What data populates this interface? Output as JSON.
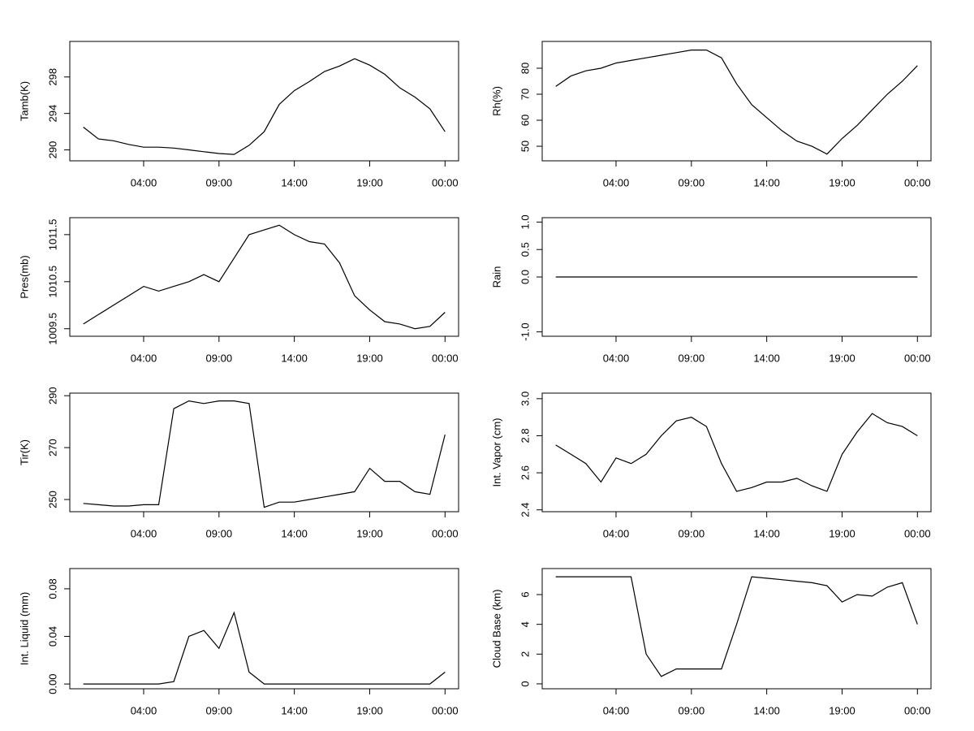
{
  "chart_data": [
    {
      "type": "line",
      "y_label": "Tamb(K)",
      "color": "#000000",
      "x": [
        0,
        1,
        2,
        3,
        4,
        5,
        6,
        7,
        8,
        9,
        10,
        11,
        12,
        13,
        14,
        15,
        16,
        17,
        18,
        19,
        20,
        21,
        22,
        23,
        24
      ],
      "values": [
        292.5,
        291.2,
        291,
        290.6,
        290.3,
        290.3,
        290.2,
        290,
        289.8,
        289.6,
        289.5,
        290.5,
        292,
        295,
        296.5,
        297.5,
        298.6,
        299.2,
        300,
        299.3,
        298.3,
        296.8,
        295.8,
        294.5,
        292
      ],
      "xlim": [
        -0.9,
        24.9
      ],
      "xticks": [
        {
          "value": 4,
          "label": "04:00"
        },
        {
          "value": 9,
          "label": "09:00"
        },
        {
          "value": 14,
          "label": "14:00"
        },
        {
          "value": 19,
          "label": "19:00"
        },
        {
          "value": 24,
          "label": "00:00"
        }
      ],
      "ylim": [
        288.8,
        301.9
      ],
      "yticks": [
        290,
        294,
        298
      ]
    },
    {
      "type": "line",
      "y_label": "Rh(%)",
      "color": "#000000",
      "x": [
        0,
        1,
        2,
        3,
        4,
        5,
        6,
        7,
        8,
        9,
        10,
        11,
        12,
        13,
        14,
        15,
        16,
        17,
        18,
        19,
        20,
        21,
        22,
        23,
        24
      ],
      "values": [
        73,
        77,
        79,
        80,
        82,
        83,
        84,
        85,
        86,
        87,
        87,
        84,
        74,
        66,
        61,
        56,
        52,
        50,
        47,
        53,
        58,
        64,
        70,
        75,
        81
      ],
      "xlim": [
        -0.9,
        24.9
      ],
      "xticks": [
        {
          "value": 4,
          "label": "04:00"
        },
        {
          "value": 9,
          "label": "09:00"
        },
        {
          "value": 14,
          "label": "14:00"
        },
        {
          "value": 19,
          "label": "19:00"
        },
        {
          "value": 24,
          "label": "00:00"
        }
      ],
      "ylim": [
        44.4,
        90.3
      ],
      "yticks": [
        50,
        60,
        70,
        80
      ]
    },
    {
      "type": "line",
      "y_label": "Pres(mb)",
      "color": "#000000",
      "x": [
        0,
        1,
        2,
        3,
        4,
        5,
        6,
        7,
        8,
        9,
        10,
        11,
        12,
        13,
        14,
        15,
        16,
        17,
        18,
        19,
        20,
        21,
        22,
        23,
        24
      ],
      "values": [
        1009.6,
        1009.8,
        1010.0,
        1010.2,
        1010.4,
        1010.3,
        1010.4,
        1010.5,
        1010.65,
        1010.5,
        1011.0,
        1011.5,
        1011.6,
        1011.7,
        1011.5,
        1011.35,
        1011.3,
        1010.9,
        1010.2,
        1009.9,
        1009.65,
        1009.6,
        1009.5,
        1009.55,
        1009.85
      ],
      "xlim": [
        -0.9,
        24.9
      ],
      "xticks": [
        {
          "value": 4,
          "label": "04:00"
        },
        {
          "value": 9,
          "label": "09:00"
        },
        {
          "value": 14,
          "label": "14:00"
        },
        {
          "value": 19,
          "label": "19:00"
        },
        {
          "value": 24,
          "label": "00:00"
        }
      ],
      "ylim": [
        1009.34,
        1011.86
      ],
      "yticks": [
        1009.5,
        1010.5,
        1011.5
      ]
    },
    {
      "type": "line",
      "y_label": "Rain",
      "color": "#000000",
      "x": [
        0,
        1,
        2,
        3,
        4,
        5,
        6,
        7,
        8,
        9,
        10,
        11,
        12,
        13,
        14,
        15,
        16,
        17,
        18,
        19,
        20,
        21,
        22,
        23,
        24
      ],
      "values": [
        0,
        0,
        0,
        0,
        0,
        0,
        0,
        0,
        0,
        0,
        0,
        0,
        0,
        0,
        0,
        0,
        0,
        0,
        0,
        0,
        0,
        0,
        0,
        0,
        0
      ],
      "xlim": [
        -0.9,
        24.9
      ],
      "xticks": [
        {
          "value": 4,
          "label": "04:00"
        },
        {
          "value": 9,
          "label": "09:00"
        },
        {
          "value": 14,
          "label": "14:00"
        },
        {
          "value": 19,
          "label": "19:00"
        },
        {
          "value": 24,
          "label": "00:00"
        }
      ],
      "ylim": [
        -1.08,
        1.08
      ],
      "yticks": [
        {
          "value": -1,
          "label": "-1.0"
        },
        {
          "value": 0,
          "label": "0.0"
        },
        {
          "value": 0.5,
          "label": "0.5"
        },
        {
          "value": 1,
          "label": "1.0"
        }
      ]
    },
    {
      "type": "line",
      "y_label": "Tir(K)",
      "color": "#000000",
      "x": [
        0,
        1,
        2,
        3,
        4,
        5,
        6,
        7,
        8,
        9,
        10,
        11,
        12,
        13,
        14,
        15,
        16,
        17,
        18,
        19,
        20,
        21,
        22,
        23,
        24
      ],
      "values": [
        248.5,
        248,
        247.5,
        247.5,
        248,
        248,
        285,
        288,
        287,
        288,
        288,
        287,
        247,
        249,
        249,
        250,
        251,
        252,
        253,
        262,
        257,
        257,
        253,
        252,
        275
      ],
      "xlim": [
        -0.9,
        24.9
      ],
      "xticks": [
        {
          "value": 4,
          "label": "04:00"
        },
        {
          "value": 9,
          "label": "09:00"
        },
        {
          "value": 14,
          "label": "14:00"
        },
        {
          "value": 19,
          "label": "19:00"
        },
        {
          "value": 24,
          "label": "00:00"
        }
      ],
      "ylim": [
        245.3,
        291
      ],
      "yticks": [
        250,
        270,
        290
      ]
    },
    {
      "type": "line",
      "y_label": "Int. Vapor (cm)",
      "color": "#000000",
      "x": [
        0,
        1,
        2,
        3,
        4,
        5,
        6,
        7,
        8,
        9,
        10,
        11,
        12,
        13,
        14,
        15,
        16,
        17,
        18,
        19,
        20,
        21,
        22,
        23,
        24
      ],
      "values": [
        2.75,
        2.7,
        2.65,
        2.55,
        2.68,
        2.65,
        2.7,
        2.8,
        2.88,
        2.9,
        2.85,
        2.65,
        2.5,
        2.52,
        2.55,
        2.55,
        2.57,
        2.53,
        2.5,
        2.7,
        2.82,
        2.92,
        2.87,
        2.85,
        2.8
      ],
      "xlim": [
        -0.9,
        24.9
      ],
      "xticks": [
        {
          "value": 4,
          "label": "04:00"
        },
        {
          "value": 9,
          "label": "09:00"
        },
        {
          "value": 14,
          "label": "14:00"
        },
        {
          "value": 19,
          "label": "19:00"
        },
        {
          "value": 24,
          "label": "00:00"
        }
      ],
      "ylim": [
        2.39,
        3.03
      ],
      "yticks": [
        2.4,
        2.6,
        2.8,
        {
          "value": 3,
          "label": "3.0"
        }
      ]
    },
    {
      "type": "line",
      "y_label": "Int. Liquid (mm)",
      "color": "#000000",
      "x": [
        0,
        1,
        2,
        3,
        4,
        5,
        6,
        7,
        8,
        9,
        10,
        11,
        12,
        13,
        14,
        15,
        16,
        17,
        18,
        19,
        20,
        21,
        22,
        23,
        24
      ],
      "values": [
        0,
        0,
        0,
        0,
        0,
        0,
        0.002,
        0.04,
        0.045,
        0.03,
        0.06,
        0.01,
        0,
        0,
        0,
        0,
        0,
        0,
        0,
        0,
        0,
        0,
        0,
        0,
        0.01
      ],
      "xlim": [
        -0.9,
        24.9
      ],
      "xticks": [
        {
          "value": 4,
          "label": "04:00"
        },
        {
          "value": 9,
          "label": "09:00"
        },
        {
          "value": 14,
          "label": "14:00"
        },
        {
          "value": 19,
          "label": "19:00"
        },
        {
          "value": 24,
          "label": "00:00"
        }
      ],
      "ylim": [
        -0.004,
        0.097
      ],
      "yticks": [
        {
          "value": 0,
          "label": "0.00"
        },
        {
          "value": 0.04,
          "label": "0.04"
        },
        {
          "value": 0.08,
          "label": "0.08"
        }
      ]
    },
    {
      "type": "line",
      "y_label": "Cloud Base (km)",
      "color": "#000000",
      "x": [
        0,
        1,
        2,
        3,
        4,
        5,
        6,
        7,
        8,
        9,
        10,
        11,
        12,
        13,
        14,
        15,
        16,
        17,
        18,
        19,
        20,
        21,
        22,
        23,
        24
      ],
      "values": [
        7.2,
        7.2,
        7.2,
        7.2,
        7.2,
        7.2,
        2,
        0.5,
        1,
        1,
        1,
        1,
        4,
        7.2,
        7.1,
        7,
        6.9,
        6.8,
        6.6,
        5.5,
        6,
        5.9,
        6.5,
        6.8,
        4
      ],
      "xlim": [
        -0.9,
        24.9
      ],
      "xticks": [
        {
          "value": 4,
          "label": "04:00"
        },
        {
          "value": 9,
          "label": "09:00"
        },
        {
          "value": 14,
          "label": "14:00"
        },
        {
          "value": 19,
          "label": "19:00"
        },
        {
          "value": 24,
          "label": "00:00"
        }
      ],
      "ylim": [
        -0.33,
        7.75
      ],
      "yticks": [
        0,
        2,
        4,
        6
      ]
    }
  ]
}
